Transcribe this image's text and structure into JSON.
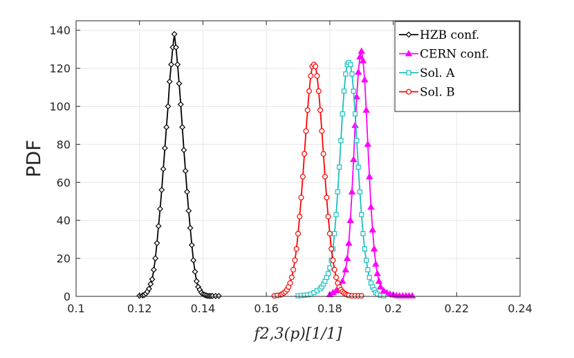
{
  "chart_data": {
    "type": "line",
    "title": "",
    "xlabel": "f2,3(p)[1/1]",
    "ylabel": "PDF",
    "xlim": [
      0.1,
      0.24
    ],
    "ylim": [
      0,
      145
    ],
    "xticks": [
      0.1,
      0.12,
      0.14,
      0.16,
      0.18,
      0.2,
      0.22,
      0.24
    ],
    "xtick_labels": [
      "0.1",
      "0.12",
      "0.14",
      "0.16",
      "0.18",
      "0.2",
      "0.22",
      "0.24"
    ],
    "yticks": [
      0,
      20,
      40,
      60,
      80,
      100,
      120,
      140
    ],
    "ytick_labels": [
      "0",
      "20",
      "40",
      "60",
      "80",
      "100",
      "120",
      "140"
    ],
    "grid": true,
    "legend_position": "top-right",
    "series": [
      {
        "name": "HZB conf.",
        "color": "#000000",
        "marker": "diamond",
        "x": [
          0.12,
          0.121,
          0.1215,
          0.122,
          0.1225,
          0.123,
          0.1235,
          0.124,
          0.1245,
          0.125,
          0.1255,
          0.126,
          0.1265,
          0.127,
          0.1275,
          0.128,
          0.1285,
          0.129,
          0.1295,
          0.13,
          0.1305,
          0.131,
          0.1315,
          0.132,
          0.1325,
          0.133,
          0.1335,
          0.134,
          0.1345,
          0.135,
          0.1355,
          0.136,
          0.1365,
          0.137,
          0.1375,
          0.138,
          0.1385,
          0.139,
          0.1395,
          0.14,
          0.1405,
          0.141,
          0.1415,
          0.142,
          0.1425,
          0.143,
          0.144,
          0.145
        ],
        "y": [
          0.3,
          0.5,
          0.8,
          1.5,
          2.5,
          4,
          6.5,
          9,
          14,
          20,
          28,
          37,
          46,
          56,
          67,
          78,
          89,
          100,
          113,
          122,
          131,
          138,
          131,
          122,
          112,
          101,
          89,
          77,
          66,
          55,
          45,
          36,
          27,
          19,
          13,
          8,
          5,
          3.5,
          2,
          1.2,
          0.8,
          0.5,
          0.3,
          0.2,
          0.2,
          0.2,
          0.2,
          0.2
        ]
      },
      {
        "name": "CERN conf.",
        "color": "#ff00ff",
        "marker": "triangle",
        "x": [
          0.18,
          0.181,
          0.182,
          0.183,
          0.184,
          0.185,
          0.1855,
          0.186,
          0.1865,
          0.187,
          0.1875,
          0.188,
          0.1885,
          0.189,
          0.1895,
          0.19,
          0.1905,
          0.191,
          0.1915,
          0.192,
          0.1925,
          0.193,
          0.1935,
          0.194,
          0.1945,
          0.195,
          0.1955,
          0.196,
          0.197,
          0.198,
          0.199,
          0.2,
          0.201,
          0.202,
          0.203,
          0.204,
          0.205,
          0.206
        ],
        "y": [
          1,
          2,
          3,
          5,
          8,
          14,
          20,
          28,
          40,
          55,
          72,
          90,
          105,
          118,
          126,
          129,
          124,
          114,
          98,
          80,
          63,
          47,
          35,
          25,
          17,
          12,
          8,
          5,
          3,
          2,
          1.2,
          0.8,
          0.5,
          0.3,
          0.3,
          0.3,
          0.3,
          0.3
        ]
      },
      {
        "name": "Sol. A",
        "color": "#1abfbf",
        "marker": "square",
        "x": [
          0.17,
          0.171,
          0.172,
          0.173,
          0.174,
          0.175,
          0.176,
          0.177,
          0.1775,
          0.178,
          0.1785,
          0.179,
          0.1795,
          0.18,
          0.1805,
          0.181,
          0.1815,
          0.182,
          0.1825,
          0.183,
          0.1835,
          0.184,
          0.1845,
          0.185,
          0.1855,
          0.186,
          0.1865,
          0.187,
          0.1875,
          0.188,
          0.1885,
          0.189,
          0.1895,
          0.19,
          0.1905,
          0.191,
          0.1915,
          0.192,
          0.1925,
          0.193,
          0.1935,
          0.194,
          0.1945,
          0.195,
          0.196,
          0.197
        ],
        "y": [
          0.3,
          0.4,
          0.6,
          0.8,
          1.2,
          2,
          3,
          4,
          5,
          6.5,
          8,
          10,
          12,
          15,
          19,
          25,
          33,
          43,
          55,
          68,
          82,
          96,
          108,
          117,
          122,
          123,
          122,
          117,
          108,
          96,
          82,
          68,
          55,
          43,
          33,
          25,
          19,
          14,
          10,
          7,
          5,
          3.5,
          2,
          1.2,
          0.5,
          0.3
        ]
      },
      {
        "name": "Sol. B",
        "color": "#ff0000",
        "marker": "circle",
        "x": [
          0.1625,
          0.1635,
          0.1645,
          0.165,
          0.1655,
          0.166,
          0.1665,
          0.167,
          0.1675,
          0.168,
          0.1685,
          0.169,
          0.1695,
          0.17,
          0.1705,
          0.171,
          0.1715,
          0.172,
          0.1725,
          0.173,
          0.1735,
          0.174,
          0.1745,
          0.175,
          0.1755,
          0.176,
          0.1765,
          0.177,
          0.1775,
          0.178,
          0.1785,
          0.179,
          0.1795,
          0.18,
          0.1805,
          0.181,
          0.1815,
          0.182,
          0.1825,
          0.183,
          0.1835,
          0.184,
          0.1845,
          0.185,
          0.1855,
          0.186,
          0.187,
          0.188,
          0.189,
          0.19
        ],
        "y": [
          0.3,
          0.5,
          0.8,
          1.2,
          1.8,
          2.5,
          3.5,
          5,
          7,
          10,
          14,
          19,
          25,
          33,
          42,
          52,
          63,
          75,
          87,
          98,
          108,
          116,
          121,
          122,
          121,
          116,
          108,
          98,
          87,
          75,
          63,
          52,
          42,
          33,
          25,
          19,
          14,
          10,
          7,
          5,
          3.5,
          2.5,
          1.8,
          1.2,
          0.8,
          0.5,
          0.3,
          0.3,
          0.3,
          0.3
        ]
      }
    ]
  }
}
